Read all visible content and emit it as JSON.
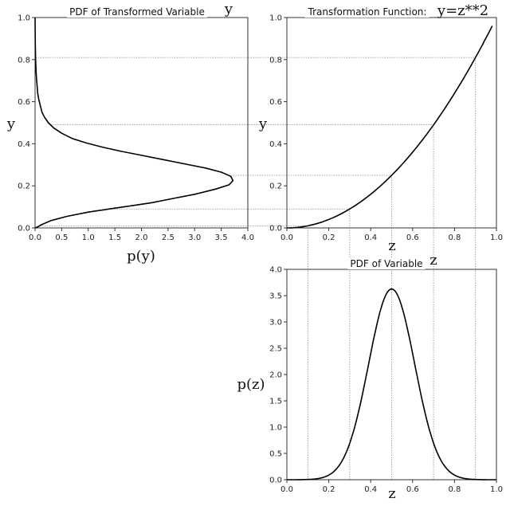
{
  "chart_data": [
    {
      "id": "pdf_y",
      "type": "line",
      "title": "PDF of Transformed Variable",
      "corner_label": "y",
      "xlabel": "p(y)",
      "ylabel": "y",
      "xlim": [
        0,
        4
      ],
      "ylim": [
        0,
        1
      ],
      "xticks": [
        0.0,
        0.5,
        1.0,
        1.5,
        2.0,
        2.5,
        3.0,
        3.5,
        4.0
      ],
      "yticks": [
        0.0,
        0.2,
        0.4,
        0.6,
        0.8,
        1.0
      ],
      "series": [
        {
          "x": [
            0.0,
            0.05,
            0.12,
            0.3,
            0.6,
            1.0,
            1.4,
            1.8,
            2.2,
            2.6,
            3.0,
            3.4,
            3.65,
            3.72,
            3.68,
            3.5,
            3.2,
            2.8,
            2.4,
            2.0,
            1.6,
            1.25,
            0.95,
            0.7,
            0.5,
            0.35,
            0.25,
            0.18,
            0.13,
            0.1,
            0.07,
            0.05,
            0.04,
            0.03,
            0.02,
            0.01,
            0.005,
            0.0
          ],
          "y": [
            0.0,
            0.005,
            0.015,
            0.035,
            0.055,
            0.075,
            0.09,
            0.105,
            0.12,
            0.14,
            0.16,
            0.185,
            0.205,
            0.225,
            0.245,
            0.265,
            0.285,
            0.305,
            0.325,
            0.345,
            0.365,
            0.385,
            0.405,
            0.425,
            0.45,
            0.475,
            0.5,
            0.525,
            0.55,
            0.58,
            0.61,
            0.64,
            0.67,
            0.7,
            0.74,
            0.8,
            0.87,
            1.0
          ]
        }
      ]
    },
    {
      "id": "transform",
      "type": "line",
      "title": "Transformation Function:",
      "corner_label": "y=z**2",
      "xlabel": "z",
      "ylabel": "y",
      "xlim": [
        0,
        1
      ],
      "ylim": [
        0,
        1
      ],
      "xticks": [
        0.0,
        0.2,
        0.4,
        0.6,
        0.8,
        1.0
      ],
      "yticks": [
        0.0,
        0.2,
        0.4,
        0.6,
        0.8,
        1.0
      ],
      "function": "z**2",
      "z_range": [
        0,
        0.98
      ]
    },
    {
      "id": "pdf_z",
      "type": "line",
      "title": "PDF of Variable",
      "corner_label": "z",
      "xlabel": "z",
      "ylabel": "p(z)",
      "xlim": [
        0,
        1
      ],
      "ylim": [
        0,
        4
      ],
      "xticks": [
        0.0,
        0.2,
        0.4,
        0.6,
        0.8,
        1.0
      ],
      "yticks": [
        0.0,
        0.5,
        1.0,
        1.5,
        2.0,
        2.5,
        3.0,
        3.5,
        4.0
      ],
      "distribution": {
        "kind": "normal",
        "mean": 0.5,
        "std": 0.11
      }
    }
  ],
  "guides": {
    "z_values": [
      0.1,
      0.3,
      0.5,
      0.7,
      0.9
    ],
    "line_color": "#8a8a8a",
    "curve_color": "#000000",
    "axis_color": "#333333"
  }
}
